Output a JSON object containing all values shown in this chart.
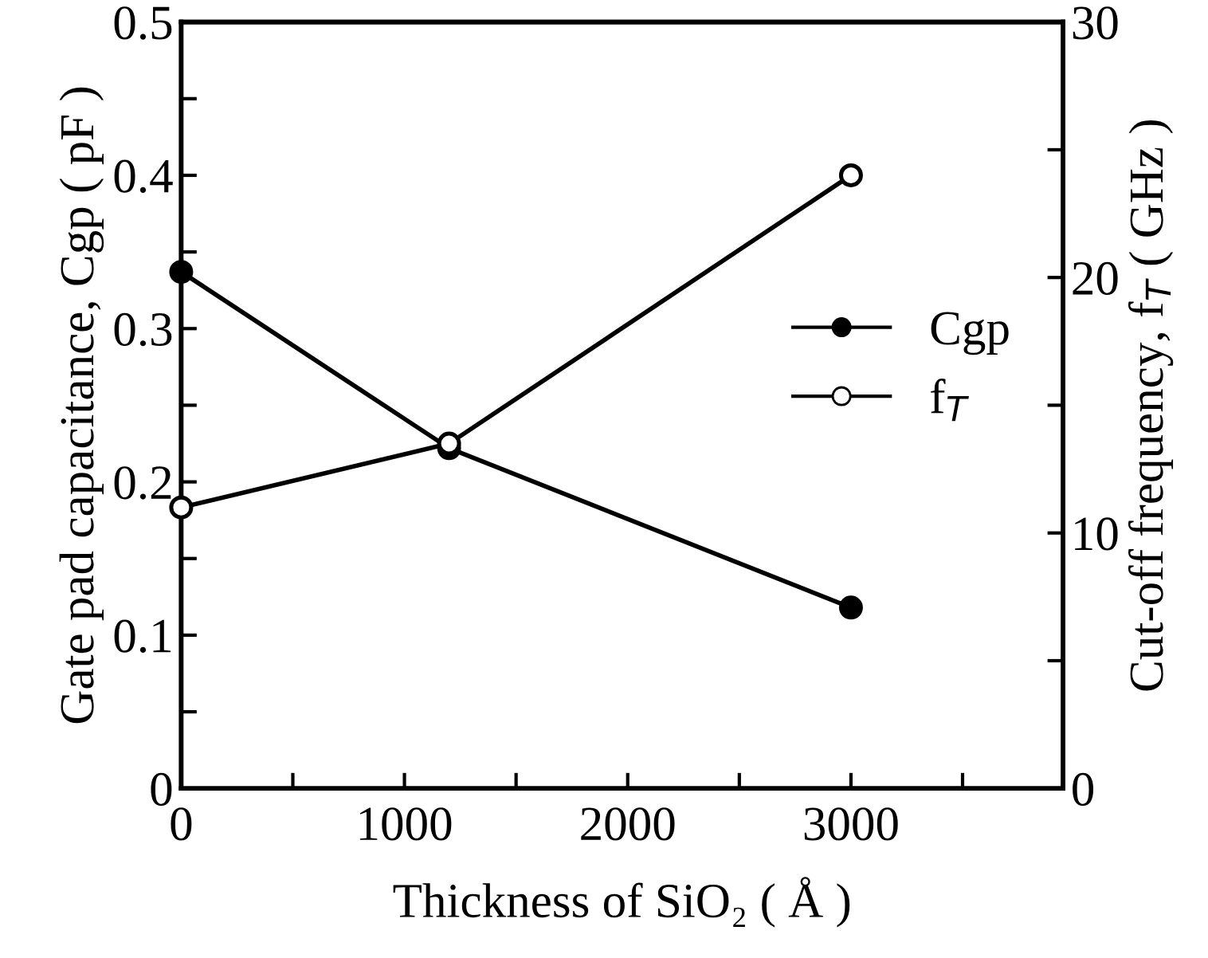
{
  "chart_data": {
    "type": "line",
    "xlabel": "Thickness of SiO₂ ( Å )",
    "ylabel": "Gate pad capacitance, Cgp ( pF )",
    "y2label": "Cut-off frequency, f$_{T}$ ( GHz )",
    "x": [
      0,
      1200,
      3000
    ],
    "series": [
      {
        "name": "Cgp",
        "color": "#000000",
        "values": [
          0.337,
          0.222,
          0.118
        ],
        "marker": "circle",
        "colors": [
          "#000000",
          "#000000",
          "#000000"
        ]
      },
      {
        "name": "f$_{T}$",
        "color": "#000000",
        "values": [
          11.0,
          13.5,
          24.0
        ],
        "axis": "y2",
        "marker": "circle",
        "colors": [
          "#ffffff",
          "#ffffff",
          "#ffffff"
        ]
      }
    ],
    "xlim": [
      0,
      3950
    ],
    "xticks": [
      0,
      {
        "value": 500,
        "label": null
      },
      1000,
      {
        "value": 1500,
        "label": null
      },
      2000,
      {
        "value": 2500,
        "label": null
      },
      3000,
      {
        "value": 3500,
        "label": null
      }
    ],
    "ylim": [
      0,
      0.5
    ],
    "yticks": [
      0,
      {
        "value": 0.05,
        "label": null
      },
      0.1,
      {
        "value": 0.15,
        "label": null
      },
      0.2,
      {
        "value": 0.25,
        "label": null
      },
      0.3,
      {
        "value": 0.35,
        "label": null
      },
      0.4,
      {
        "value": 0.45,
        "label": null
      },
      0.5
    ],
    "y2lim": [
      0,
      30
    ],
    "y2ticks": [
      0,
      {
        "value": 5,
        "label": null
      },
      10,
      {
        "value": 15,
        "label": null
      },
      20,
      {
        "value": 25,
        "label": null
      },
      30
    ],
    "legend": "right",
    "grid": false,
    "line_style": "solid"
  }
}
